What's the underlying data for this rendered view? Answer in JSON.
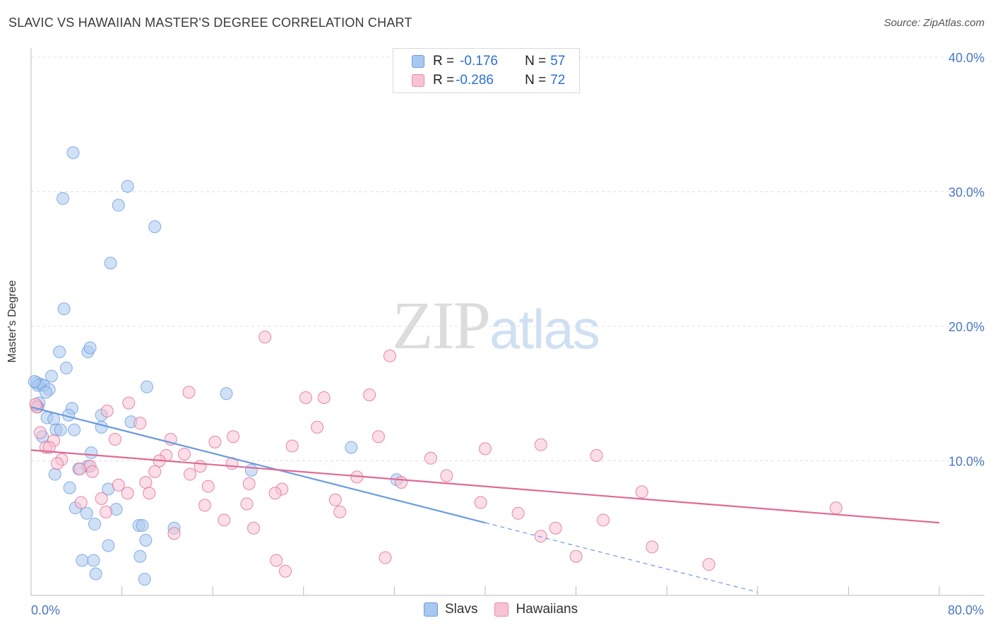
{
  "title": "SLAVIC VS HAWAIIAN MASTER'S DEGREE CORRELATION CHART",
  "source": "Source: ZipAtlas.com",
  "watermark": {
    "part1": "ZIP",
    "part2": "atlas"
  },
  "legend": {
    "rows": [
      {
        "r_label": "R = ",
        "r_value": "-0.176",
        "n_label": "N = ",
        "n_value": "57",
        "color": "#a9c8ef",
        "border": "#6a9be0"
      },
      {
        "r_label": "R = ",
        "r_value": "-0.286",
        "n_label": "N = ",
        "n_value": "72",
        "color": "#f7c3d3",
        "border": "#e88aa8"
      }
    ]
  },
  "bottom_legend": [
    {
      "label": "Slavs",
      "color": "#a9c8ef",
      "border": "#6a9be0"
    },
    {
      "label": "Hawaiians",
      "color": "#f7c3d3",
      "border": "#e88aa8"
    }
  ],
  "chart_data": {
    "type": "scatter",
    "ylabel": "Master's Degree",
    "xlabel": "",
    "xlim": [
      0,
      80
    ],
    "ylim": [
      0,
      40
    ],
    "x_tick_labels": [
      {
        "value": 0,
        "label": "0.0%"
      },
      {
        "value": 80,
        "label": "80.0%"
      }
    ],
    "y_tick_labels": [
      {
        "value": 10,
        "label": "10.0%"
      },
      {
        "value": 20,
        "label": "20.0%"
      },
      {
        "value": 30,
        "label": "30.0%"
      },
      {
        "value": 40,
        "label": "40.0%"
      }
    ],
    "grid": true,
    "series": [
      {
        "name": "Slavs",
        "color": "#6a9be0",
        "fill": "#a9c8ef",
        "trend": {
          "x0": 0,
          "y0": 14.0,
          "x1": 40,
          "y1": 5.4,
          "dashed_to_x": 64
        },
        "points": [
          [
            3.7,
            32.9
          ],
          [
            2.8,
            29.5
          ],
          [
            8.5,
            30.4
          ],
          [
            7.7,
            29.0
          ],
          [
            10.9,
            27.4
          ],
          [
            7.0,
            24.7
          ],
          [
            2.9,
            21.3
          ],
          [
            2.5,
            18.1
          ],
          [
            5.0,
            18.1
          ],
          [
            5.2,
            18.4
          ],
          [
            3.1,
            16.9
          ],
          [
            0.5,
            15.8
          ],
          [
            0.8,
            15.7
          ],
          [
            0.6,
            15.6
          ],
          [
            1.1,
            15.6
          ],
          [
            1.6,
            15.3
          ],
          [
            1.3,
            15.1
          ],
          [
            0.7,
            14.3
          ],
          [
            1.8,
            16.3
          ],
          [
            10.2,
            15.5
          ],
          [
            17.2,
            15.0
          ],
          [
            0.6,
            14.0
          ],
          [
            3.6,
            13.9
          ],
          [
            1.4,
            13.2
          ],
          [
            2.0,
            13.1
          ],
          [
            3.3,
            13.4
          ],
          [
            6.2,
            13.4
          ],
          [
            8.8,
            12.9
          ],
          [
            6.2,
            12.5
          ],
          [
            2.2,
            12.3
          ],
          [
            2.6,
            12.3
          ],
          [
            3.8,
            12.3
          ],
          [
            1.0,
            11.8
          ],
          [
            5.3,
            10.6
          ],
          [
            28.2,
            11.0
          ],
          [
            4.2,
            9.4
          ],
          [
            5.0,
            9.6
          ],
          [
            19.4,
            9.3
          ],
          [
            2.1,
            9.0
          ],
          [
            32.2,
            8.6
          ],
          [
            3.4,
            8.0
          ],
          [
            6.8,
            7.9
          ],
          [
            3.9,
            6.5
          ],
          [
            4.9,
            6.1
          ],
          [
            7.5,
            6.4
          ],
          [
            5.6,
            5.3
          ],
          [
            9.5,
            5.2
          ],
          [
            9.8,
            5.2
          ],
          [
            12.6,
            5.0
          ],
          [
            6.8,
            3.7
          ],
          [
            10.1,
            4.1
          ],
          [
            9.6,
            2.9
          ],
          [
            4.5,
            2.6
          ],
          [
            5.5,
            2.6
          ],
          [
            5.7,
            1.6
          ],
          [
            10.0,
            1.2
          ],
          [
            0.3,
            15.9
          ]
        ]
      },
      {
        "name": "Hawaiians",
        "color": "#e06a95",
        "fill": "#f7c3d3",
        "trend": {
          "x0": 0,
          "y0": 10.8,
          "x1": 80,
          "y1": 5.4
        },
        "points": [
          [
            20.6,
            19.2
          ],
          [
            31.6,
            17.8
          ],
          [
            13.9,
            15.1
          ],
          [
            24.2,
            14.7
          ],
          [
            25.8,
            14.7
          ],
          [
            29.8,
            14.9
          ],
          [
            8.6,
            14.3
          ],
          [
            0.5,
            14.0
          ],
          [
            6.7,
            13.7
          ],
          [
            9.6,
            12.8
          ],
          [
            25.2,
            12.5
          ],
          [
            0.8,
            12.1
          ],
          [
            12.3,
            11.6
          ],
          [
            7.4,
            11.6
          ],
          [
            2.0,
            11.5
          ],
          [
            17.8,
            11.8
          ],
          [
            16.2,
            11.4
          ],
          [
            30.6,
            11.8
          ],
          [
            23.0,
            11.1
          ],
          [
            1.3,
            11.0
          ],
          [
            1.6,
            11.0
          ],
          [
            11.9,
            10.4
          ],
          [
            13.5,
            10.5
          ],
          [
            40.0,
            10.9
          ],
          [
            44.9,
            11.2
          ],
          [
            49.8,
            10.4
          ],
          [
            35.2,
            10.2
          ],
          [
            2.7,
            10.1
          ],
          [
            2.3,
            9.8
          ],
          [
            11.3,
            10.0
          ],
          [
            17.7,
            9.8
          ],
          [
            14.9,
            9.6
          ],
          [
            5.2,
            9.6
          ],
          [
            4.3,
            9.4
          ],
          [
            5.4,
            9.2
          ],
          [
            10.9,
            9.2
          ],
          [
            14.0,
            9.0
          ],
          [
            36.6,
            8.9
          ],
          [
            28.7,
            8.8
          ],
          [
            7.7,
            8.2
          ],
          [
            10.1,
            8.4
          ],
          [
            19.2,
            8.3
          ],
          [
            15.6,
            8.1
          ],
          [
            22.1,
            7.9
          ],
          [
            32.6,
            8.4
          ],
          [
            8.5,
            7.6
          ],
          [
            10.4,
            7.6
          ],
          [
            21.5,
            7.6
          ],
          [
            53.8,
            7.7
          ],
          [
            6.2,
            7.2
          ],
          [
            26.8,
            7.1
          ],
          [
            4.4,
            6.9
          ],
          [
            15.3,
            6.7
          ],
          [
            19.0,
            6.8
          ],
          [
            27.2,
            6.2
          ],
          [
            39.6,
            6.9
          ],
          [
            42.9,
            6.1
          ],
          [
            6.6,
            6.2
          ],
          [
            70.9,
            6.5
          ],
          [
            17.0,
            5.6
          ],
          [
            50.4,
            5.6
          ],
          [
            12.6,
            4.6
          ],
          [
            19.6,
            5.0
          ],
          [
            46.2,
            5.0
          ],
          [
            44.9,
            4.4
          ],
          [
            54.7,
            3.6
          ],
          [
            48.0,
            2.9
          ],
          [
            21.6,
            2.6
          ],
          [
            31.2,
            2.8
          ],
          [
            22.4,
            1.8
          ],
          [
            59.7,
            2.3
          ],
          [
            0.4,
            14.2
          ]
        ]
      }
    ]
  }
}
